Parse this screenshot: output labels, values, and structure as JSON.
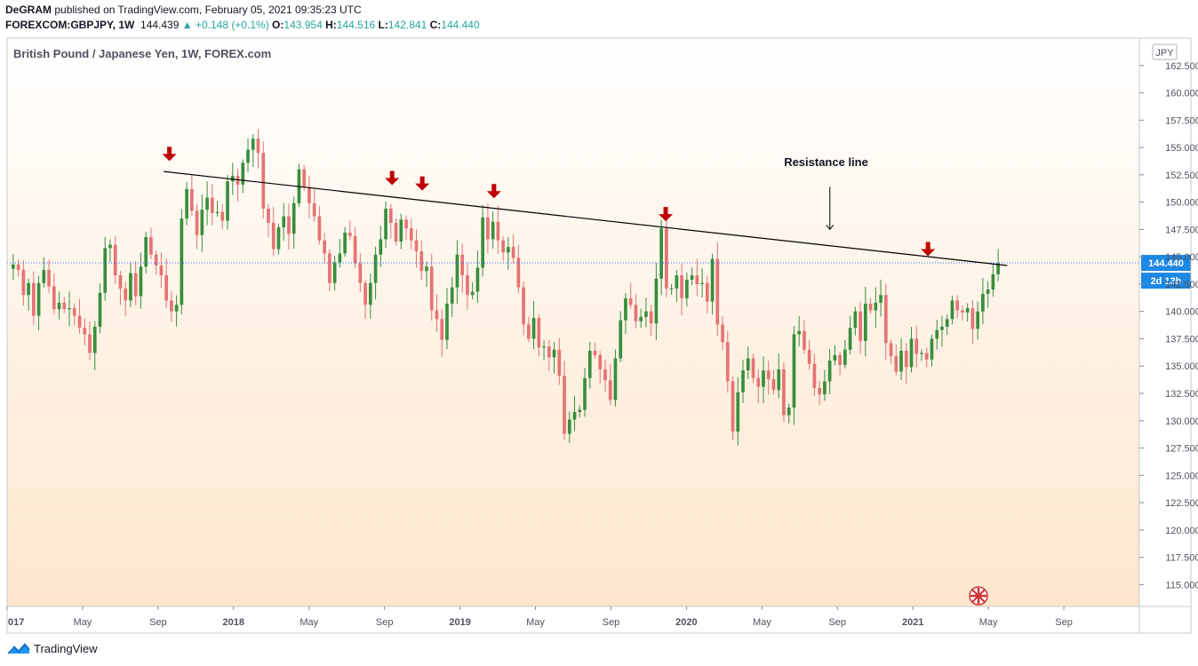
{
  "header": {
    "author": "DeGRAM",
    "published_text": "published on TradingView.com, February 05, 2021 09:35:23 UTC",
    "symbol": "FOREXCOM:GBPJPY, 1W",
    "last": "144.439",
    "change": "▲ +0.148 (+0.1%)",
    "o_label": "O:",
    "o_value": "143.954",
    "h_label": "H:",
    "h_value": "144.516",
    "l_label": "L:",
    "l_value": "142.841",
    "c_label": "C:",
    "c_value": "144.440"
  },
  "footer": {
    "brand": "TradingView"
  },
  "colors": {
    "up": "#388e3c",
    "down": "#e57373",
    "current_price_bg": "#1e88e5",
    "arrow": "#c00000",
    "wick": "#222222"
  },
  "chart_data": {
    "type": "candlestick",
    "title": "British Pound / Japanese Yen, 1W, FOREX.com",
    "currency": "JPY",
    "ylim": [
      113,
      165
    ],
    "y_ticks": [
      "115.000",
      "117.500",
      "120.000",
      "122.500",
      "125.000",
      "127.500",
      "130.000",
      "132.500",
      "135.000",
      "137.500",
      "140.000",
      "142.500",
      "145.000",
      "147.500",
      "150.000",
      "152.500",
      "155.000",
      "157.500",
      "160.000",
      "162.500"
    ],
    "x_tick_labels": [
      "017",
      "May",
      "Sep",
      "2018",
      "May",
      "Sep",
      "2019",
      "May",
      "Sep",
      "2020",
      "May",
      "Sep",
      "2021",
      "May",
      "Sep"
    ],
    "x_tick_months": [
      0,
      4,
      8,
      12,
      16,
      20,
      24,
      28,
      32,
      36,
      40,
      44,
      48,
      52,
      56
    ],
    "current_price": "144.440",
    "current_price_value": 144.44,
    "countdown": "2d 13h",
    "resistance_line": {
      "label": "Resistance line",
      "start": {
        "month": 8.3,
        "price": 152.8
      },
      "end": {
        "month": 53.0,
        "price": 144.2
      }
    },
    "resistance_touch_arrows": [
      {
        "month": 8.6,
        "price": 154.0
      },
      {
        "month": 20.4,
        "price": 151.8
      },
      {
        "month": 22.0,
        "price": 151.3
      },
      {
        "month": 25.8,
        "price": 150.6
      },
      {
        "month": 34.9,
        "price": 148.5
      },
      {
        "month": 48.8,
        "price": 145.3
      }
    ],
    "weekly_closes": [
      144.3,
      143.8,
      141.5,
      142.6,
      139.6,
      142.6,
      143.8,
      142.3,
      140.2,
      140.8,
      140.2,
      140.3,
      139.6,
      138.5,
      137.9,
      136.2,
      138.6,
      141.7,
      145.8,
      146.1,
      143.3,
      142.1,
      141.0,
      143.5,
      141.4,
      144.1,
      146.8,
      145.2,
      144.2,
      143.3,
      141.0,
      140.0,
      140.6,
      148.5,
      151.2,
      149.2,
      147.0,
      149.3,
      150.4,
      149.0,
      149.1,
      148.3,
      151.9,
      152.4,
      151.6,
      153.6,
      154.8,
      155.8,
      154.5,
      149.4,
      148.1,
      145.7,
      147.7,
      148.7,
      147.1,
      149.9,
      153.0,
      151.4,
      149.9,
      148.7,
      146.5,
      145.3,
      142.6,
      144.5,
      145.3,
      147.2,
      146.9,
      144.4,
      142.6,
      140.6,
      142.6,
      145.2,
      146.6,
      149.4,
      148.1,
      146.4,
      148.4,
      147.6,
      146.5,
      145.5,
      143.7,
      144.1,
      140.1,
      139.3,
      137.4,
      140.7,
      142.2,
      145.2,
      143.3,
      141.5,
      141.8,
      144.0,
      148.6,
      146.6,
      148.2,
      146.5,
      145.4,
      145.9,
      144.9,
      142.2,
      138.8,
      137.5,
      139.4,
      136.7,
      136.8,
      135.8,
      136.5,
      134.1,
      128.8,
      130.1,
      130.8,
      131.0,
      133.9,
      136.4,
      136.0,
      134.7,
      133.7,
      131.9,
      135.7,
      139.2,
      141.2,
      140.6,
      139.1,
      139.5,
      140.0,
      138.9,
      143.0,
      147.6,
      142.1,
      142.1,
      143.3,
      141.2,
      142.9,
      143.3,
      142.5,
      142.6,
      140.9,
      144.8,
      138.8,
      137.2,
      133.6,
      129.0,
      132.6,
      134.6,
      135.7,
      133.9,
      133.1,
      134.6,
      133.8,
      132.8,
      134.7,
      130.5,
      131.2,
      137.9,
      138.2,
      136.5,
      135.2,
      133.0,
      132.4,
      133.6,
      135.5,
      136.0,
      135.1,
      136.5,
      138.5,
      140.0,
      137.3,
      140.7,
      140.1,
      140.8,
      141.5,
      137.1,
      135.9,
      134.5,
      136.4,
      134.9,
      137.5,
      136.1,
      136.2,
      135.6,
      137.5,
      138.3,
      138.6,
      139.3,
      141.0,
      140.1,
      139.9,
      140.3,
      138.4,
      140.0,
      141.6,
      142.0,
      143.4,
      144.4
    ]
  }
}
